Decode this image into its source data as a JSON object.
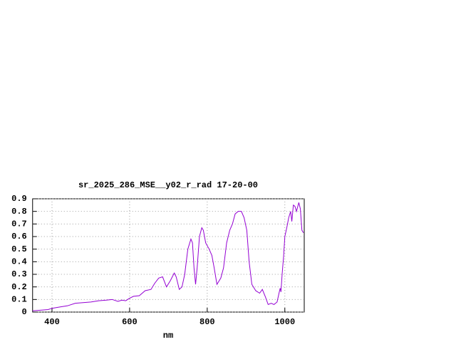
{
  "chart_data": {
    "type": "line",
    "title": "sr_2025_286_MSE__y02_r_rad 17-20-00",
    "xlabel": "nm",
    "x": [
      350,
      370,
      390,
      400,
      420,
      440,
      460,
      480,
      500,
      520,
      540,
      555,
      570,
      580,
      590,
      600,
      610,
      625,
      640,
      655,
      665,
      675,
      685,
      695,
      705,
      715,
      720,
      728,
      735,
      742,
      750,
      758,
      762,
      766,
      770,
      774,
      780,
      786,
      790,
      796,
      805,
      812,
      818,
      825,
      835,
      842,
      850,
      858,
      865,
      872,
      880,
      888,
      895,
      902,
      908,
      915,
      925,
      935,
      942,
      950,
      957,
      965,
      972,
      980,
      985,
      988,
      990,
      993,
      997,
      1000,
      1005,
      1010,
      1015,
      1018,
      1022,
      1026,
      1030,
      1036,
      1040,
      1044,
      1048
    ],
    "series": [
      {
        "color": "#9400d3",
        "values": [
          0.01,
          0.015,
          0.02,
          0.03,
          0.04,
          0.05,
          0.07,
          0.075,
          0.08,
          0.09,
          0.095,
          0.1,
          0.085,
          0.095,
          0.09,
          0.11,
          0.125,
          0.13,
          0.17,
          0.18,
          0.23,
          0.27,
          0.28,
          0.2,
          0.25,
          0.31,
          0.28,
          0.18,
          0.2,
          0.3,
          0.5,
          0.58,
          0.55,
          0.35,
          0.22,
          0.35,
          0.6,
          0.67,
          0.65,
          0.55,
          0.5,
          0.45,
          0.35,
          0.22,
          0.27,
          0.35,
          0.55,
          0.65,
          0.7,
          0.78,
          0.8,
          0.8,
          0.75,
          0.65,
          0.4,
          0.22,
          0.17,
          0.15,
          0.18,
          0.12,
          0.06,
          0.07,
          0.06,
          0.08,
          0.15,
          0.19,
          0.16,
          0.3,
          0.45,
          0.6,
          0.67,
          0.75,
          0.8,
          0.72,
          0.85,
          0.84,
          0.8,
          0.87,
          0.82,
          0.65,
          0.63
        ]
      }
    ],
    "xlim": [
      350,
      1050
    ],
    "xticks": [
      400,
      600,
      800,
      1000
    ],
    "ylim": [
      0,
      0.9
    ],
    "yticks": [
      0,
      0.1,
      0.2,
      0.3,
      0.4,
      0.5,
      0.6,
      0.7,
      0.8,
      0.9
    ],
    "grid": true
  }
}
